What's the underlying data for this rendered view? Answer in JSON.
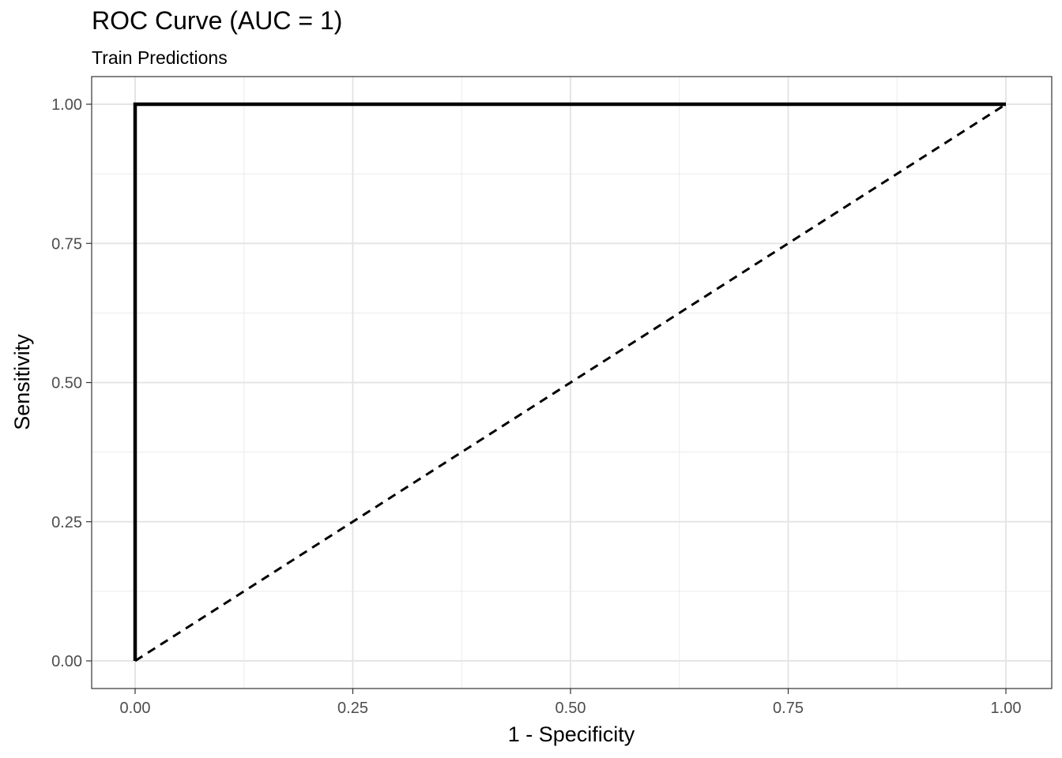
{
  "chart_data": {
    "type": "line",
    "title": "ROC Curve (AUC = 1)",
    "subtitle": "Train Predictions",
    "xlabel": "1 - Specificity",
    "ylabel": "Sensitivity",
    "xlim": [
      0,
      1
    ],
    "ylim": [
      0,
      1
    ],
    "x_ticks": [
      0,
      0.25,
      0.5,
      0.75,
      1
    ],
    "x_tick_labels": [
      "0.00",
      "0.25",
      "0.50",
      "0.75",
      "1.00"
    ],
    "y_ticks": [
      0,
      0.25,
      0.5,
      0.75,
      1
    ],
    "y_tick_labels": [
      "0.00",
      "0.25",
      "0.50",
      "0.75",
      "1.00"
    ],
    "grid": true,
    "series": [
      {
        "style": "solid",
        "color": "#000000",
        "points": [
          [
            0,
            0
          ],
          [
            0,
            1
          ],
          [
            1,
            1
          ]
        ]
      },
      {
        "style": "dashed",
        "color": "#000000",
        "points": [
          [
            0,
            0
          ],
          [
            1,
            1
          ]
        ]
      }
    ]
  }
}
